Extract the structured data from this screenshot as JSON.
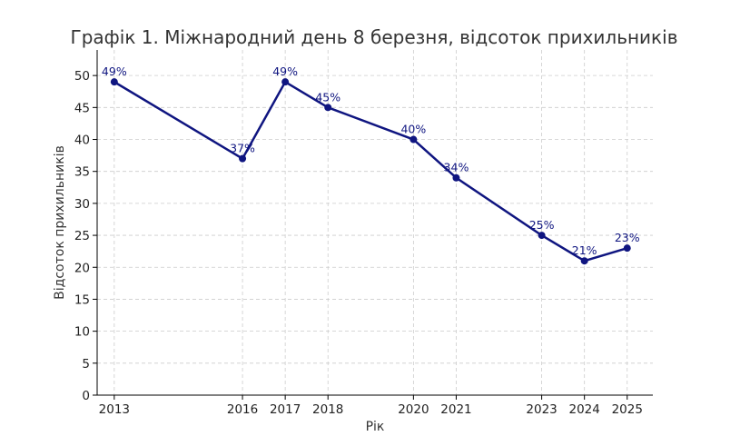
{
  "chart_data": {
    "type": "line",
    "title": "Графік 1. Міжнародний день 8 березня, відсоток прихильників",
    "xlabel": "Рік",
    "ylabel": "Відсоток прихильників",
    "x": [
      2013,
      2016,
      2017,
      2018,
      2020,
      2021,
      2023,
      2024,
      2025
    ],
    "series": [
      {
        "values": [
          49,
          37,
          49,
          45,
          40,
          34,
          25,
          21,
          23
        ],
        "labels": [
          "49%",
          "37%",
          "49%",
          "45%",
          "40%",
          "34%",
          "25%",
          "21%",
          "23%"
        ],
        "color": "#0f1580"
      }
    ],
    "xticks": [
      "2013",
      "2016",
      "2017",
      "2018",
      "2020",
      "2021",
      "2023",
      "2024",
      "2025"
    ],
    "yticks": [
      "0",
      "5",
      "10",
      "15",
      "20",
      "25",
      "30",
      "35",
      "40",
      "45",
      "50"
    ],
    "xlim": [
      2012.6,
      2025.6
    ],
    "ylim": [
      0,
      54
    ],
    "grid": true,
    "legend": "none"
  }
}
